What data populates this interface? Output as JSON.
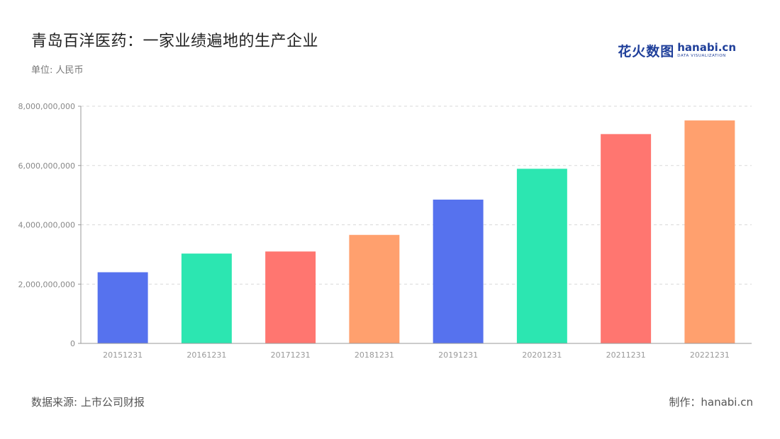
{
  "title": "青岛百洋医药：一家业绩遍地的生产企业",
  "subtitle": "单位: 人民币",
  "brand": {
    "cn": "花火数图",
    "en": "hanabi.cn",
    "tag": "DATA VISUALIZATION"
  },
  "footer": {
    "source": "数据来源: 上市公司财报",
    "credit": "制作：hanabi.cn"
  },
  "chart_data": {
    "type": "bar",
    "categories": [
      "20151231",
      "20161231",
      "20171231",
      "20181231",
      "20191231",
      "20201231",
      "20211231",
      "20221231"
    ],
    "values": [
      2400000000,
      3030000000,
      3100000000,
      3660000000,
      4850000000,
      5890000000,
      7060000000,
      7520000000
    ],
    "colors": [
      "#5672ee",
      "#2ce6b1",
      "#ff7670",
      "#ffa06e",
      "#5672ee",
      "#2ce6b1",
      "#ff7670",
      "#ffa06e"
    ],
    "ylim": [
      0,
      8000000000
    ],
    "yticks": [
      "0",
      "2,000,000,000",
      "4,000,000,000",
      "6,000,000,000",
      "8,000,000,000"
    ],
    "grid": true,
    "title": "青岛百洋医药：一家业绩遍地的生产企业",
    "xlabel": "",
    "ylabel": ""
  }
}
